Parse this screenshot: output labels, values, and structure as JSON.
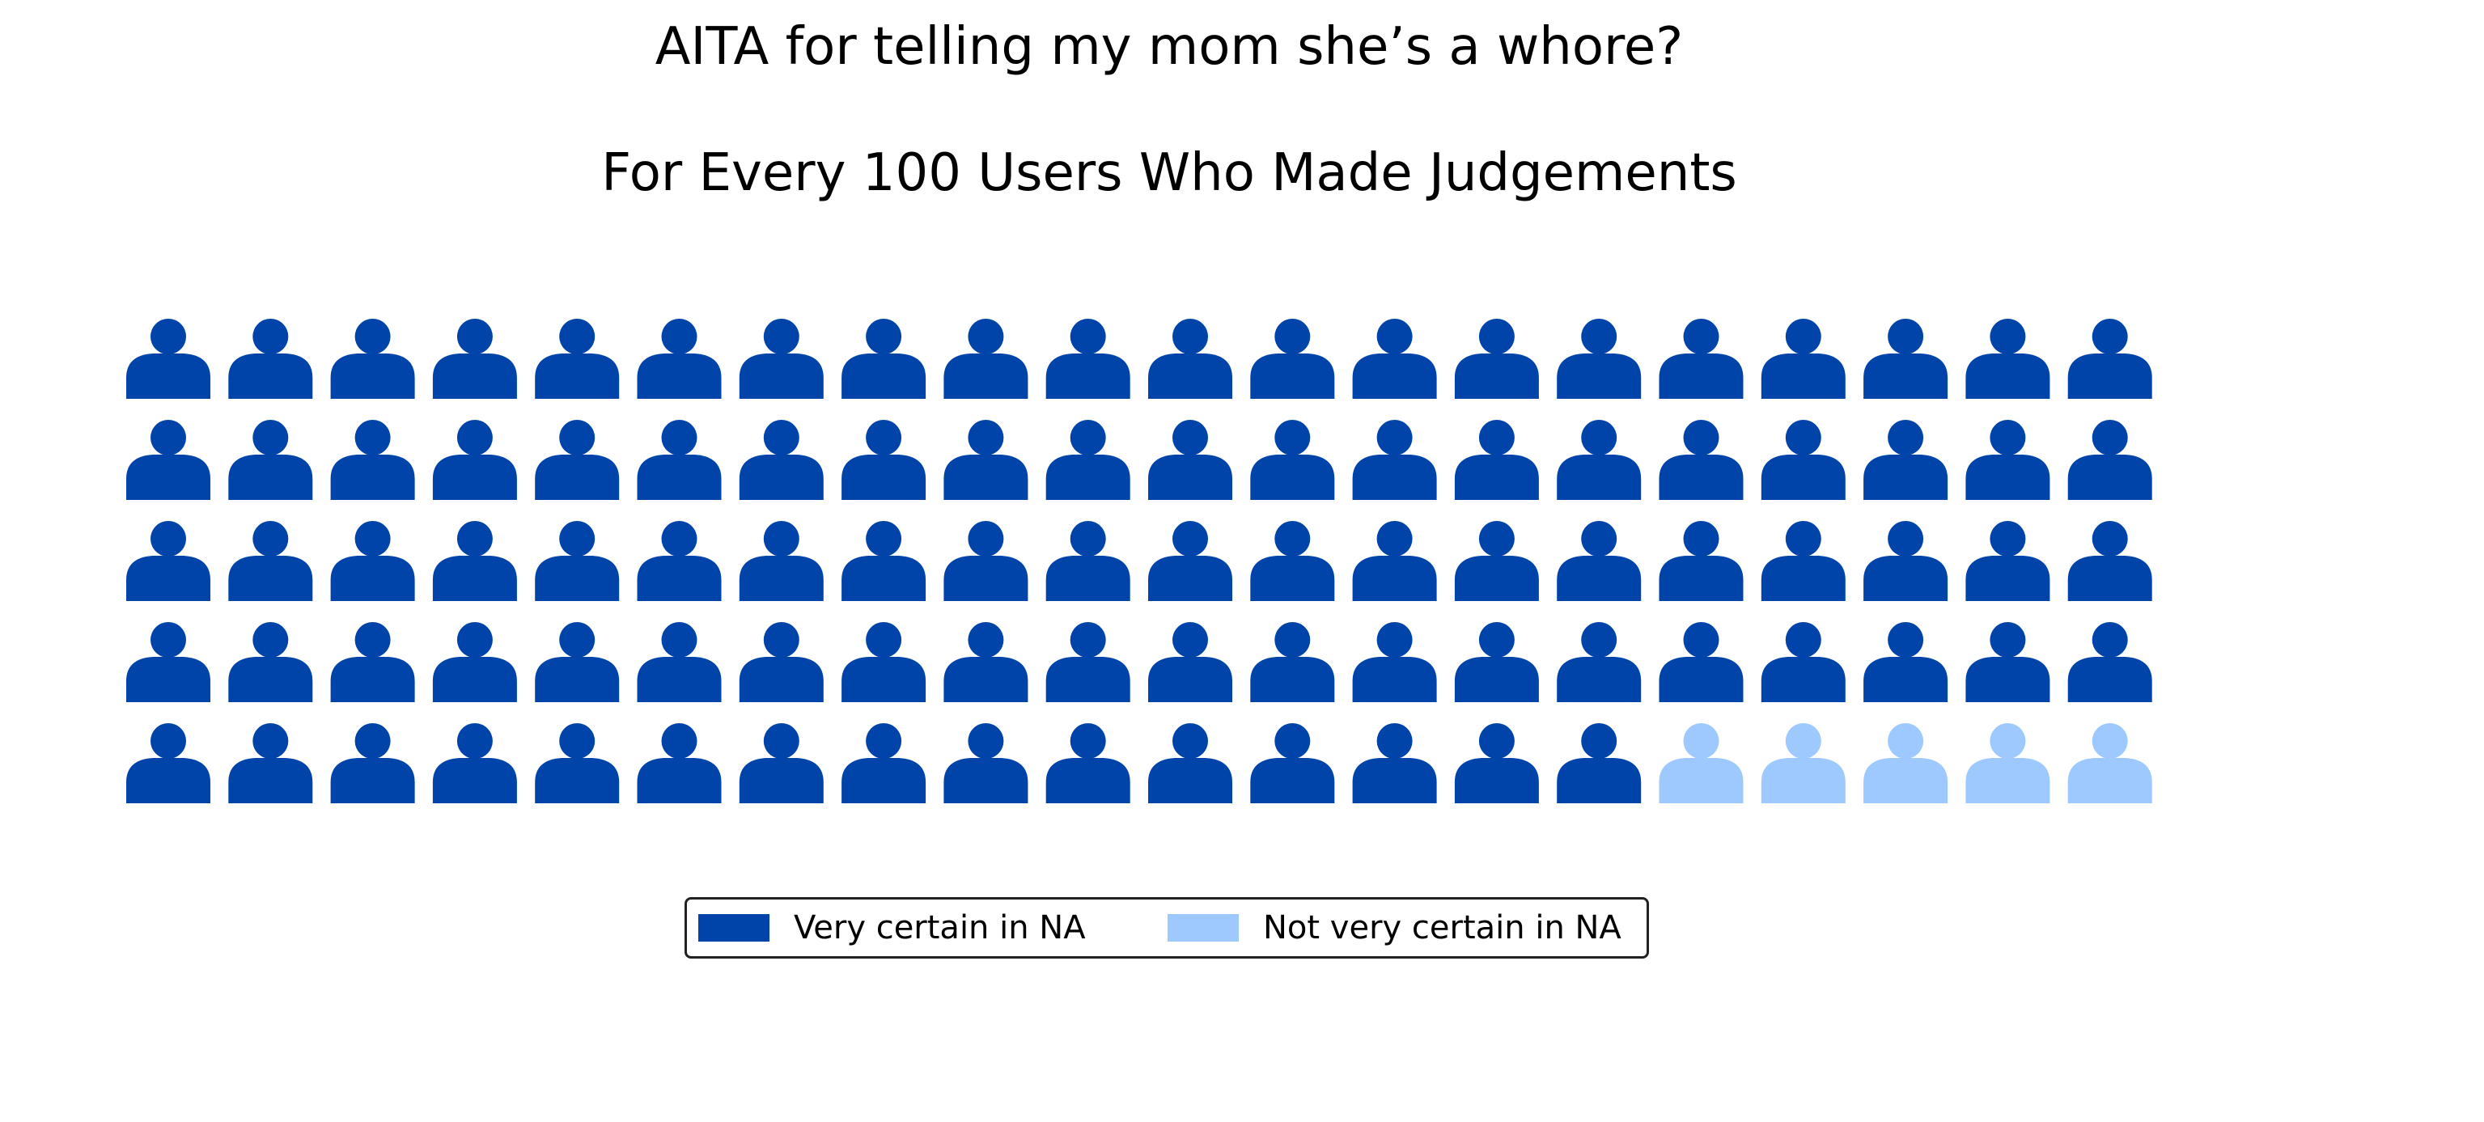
{
  "chart_data": {
    "type": "waffle",
    "title": "AITA for telling my mom she’s a whore?",
    "subtitle": "For Every 100 Users Who Made Judgements",
    "icon": "person-icon",
    "rows": 5,
    "columns": 20,
    "total": 100,
    "series": [
      {
        "name": "Very certain in NA",
        "value": 95,
        "color": "#0044aa"
      },
      {
        "name": "Not very certain in NA",
        "value": 5,
        "color": "#9ec9ff"
      }
    ],
    "legend_position": "bottom-center"
  }
}
